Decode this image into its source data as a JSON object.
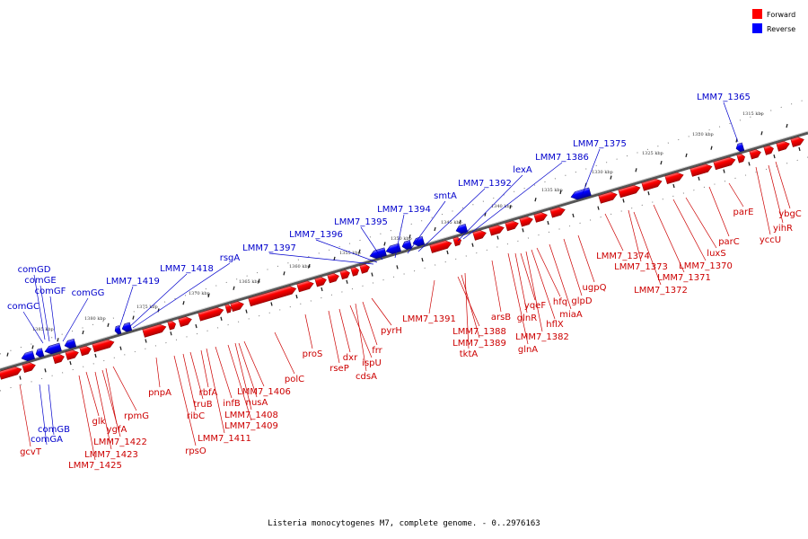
{
  "legend": [
    {
      "label": "Forward",
      "color": "#ff0000"
    },
    {
      "label": "Reverse",
      "color": "#0000ff"
    }
  ],
  "caption": "Listeria monocytogenes M7, complete genome. - 0..2976163",
  "colors": {
    "forward": "#ff0000",
    "reverse": "#0000ff",
    "label_forward": "#cc0000",
    "label_reverse": "#0000cc",
    "backbone": "#777777"
  },
  "kbp_ticks": [
    "1315 kbp",
    "1320 kbp",
    "1325 kbp",
    "1330 kbp",
    "1335 kbp",
    "1340 kbp",
    "1345 kbp",
    "1350 kbp",
    "1355 kbp",
    "1360 kbp",
    "1365 kbp",
    "1370 kbp",
    "1375 kbp",
    "1380 kbp",
    "1385 kbp"
  ],
  "reverse_labels": [
    "comGD",
    "comGE",
    "comGF",
    "comGG",
    "comGC",
    "LMM7_1419",
    "LMM7_1418",
    "rsgA",
    "LMM7_1397",
    "LMM7_1396",
    "LMM7_1395",
    "LMM7_1394",
    "smtA",
    "LMM7_1392",
    "lexA",
    "LMM7_1386",
    "LMM7_1375",
    "LMM7_1365",
    "comGB",
    "comGA"
  ],
  "forward_labels": [
    "gcvT",
    "LMM7_1425",
    "LMM7_1423",
    "glk",
    "LMM7_1422",
    "ygfA",
    "rpmG",
    "rpsO",
    "pnpA",
    "ribC",
    "truB",
    "rbfA",
    "infB",
    "LMM7_1411",
    "LMM7_1409",
    "LMM7_1408",
    "nusA",
    "LMM7_1406",
    "polC",
    "proS",
    "rseP",
    "dxr",
    "ispU",
    "cdsA",
    "frr",
    "pyrH",
    "LMM7_1391",
    "LMM7_1388",
    "LMM7_1389",
    "tktA",
    "arsB",
    "glnA",
    "glnR",
    "yqeF",
    "LMM7_1382",
    "hflX",
    "hfq",
    "miaA",
    "glpD",
    "ugpQ",
    "LMM7_1374",
    "LMM7_1373",
    "LMM7_1372",
    "LMM7_1371",
    "LMM7_1370",
    "luxS",
    "parC",
    "parE",
    "yccU",
    "yihR",
    "ybgC"
  ]
}
